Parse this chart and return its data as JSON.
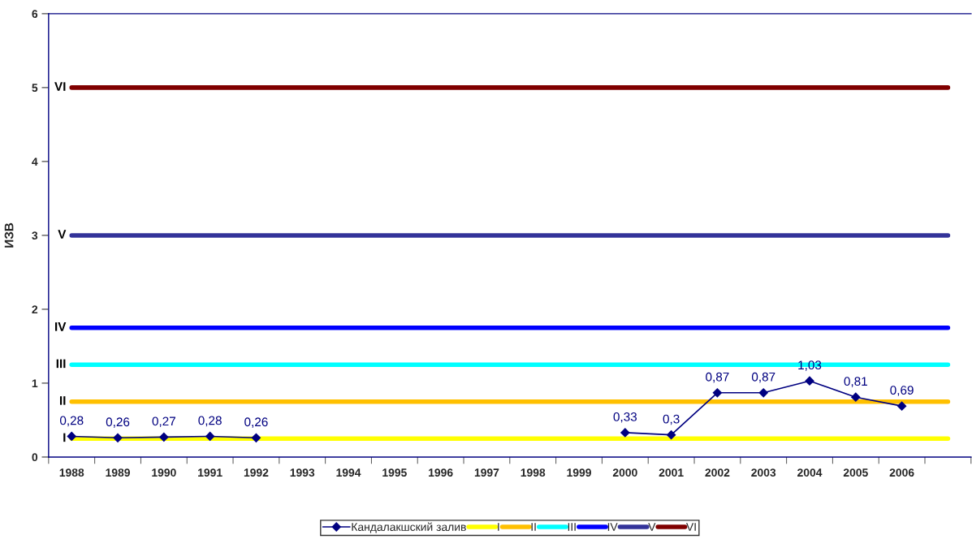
{
  "chart_data": {
    "type": "line",
    "ylabel": "ИЗВ",
    "categories": [
      "1988",
      "1989",
      "1990",
      "1991",
      "1992",
      "1993",
      "1994",
      "1995",
      "1996",
      "1997",
      "1998",
      "1999",
      "2000",
      "2001",
      "2002",
      "2003",
      "2004",
      "2005",
      "2006",
      null
    ],
    "series": [
      {
        "name": "Кандалакшский залив",
        "color": "#000080",
        "marker": "diamond",
        "values": [
          0.28,
          0.26,
          0.27,
          0.28,
          0.26,
          null,
          null,
          null,
          null,
          null,
          null,
          null,
          0.33,
          0.3,
          0.87,
          0.87,
          1.03,
          0.81,
          0.69,
          null
        ],
        "value_labels": [
          "0,28",
          "0,26",
          "0,27",
          "0,28",
          "0,26",
          null,
          null,
          null,
          null,
          null,
          null,
          null,
          "0,33",
          "0,3",
          "0,87",
          "0,87",
          "1,03",
          "0,81",
          "0,69",
          null
        ]
      },
      {
        "name": "I",
        "color": "#ffff00",
        "marker": "none",
        "values": [
          0.25,
          0.25,
          0.25,
          0.25,
          0.25,
          0.25,
          0.25,
          0.25,
          0.25,
          0.25,
          0.25,
          0.25,
          0.25,
          0.25,
          0.25,
          0.25,
          0.25,
          0.25,
          0.25,
          0.25
        ]
      },
      {
        "name": "II",
        "color": "#ffc000",
        "marker": "none",
        "values": [
          0.75,
          0.75,
          0.75,
          0.75,
          0.75,
          0.75,
          0.75,
          0.75,
          0.75,
          0.75,
          0.75,
          0.75,
          0.75,
          0.75,
          0.75,
          0.75,
          0.75,
          0.75,
          0.75,
          0.75
        ]
      },
      {
        "name": "III",
        "color": "#00ffff",
        "marker": "none",
        "values": [
          1.25,
          1.25,
          1.25,
          1.25,
          1.25,
          1.25,
          1.25,
          1.25,
          1.25,
          1.25,
          1.25,
          1.25,
          1.25,
          1.25,
          1.25,
          1.25,
          1.25,
          1.25,
          1.25,
          1.25
        ]
      },
      {
        "name": "IV",
        "color": "#0000ff",
        "marker": "none",
        "values": [
          1.75,
          1.75,
          1.75,
          1.75,
          1.75,
          1.75,
          1.75,
          1.75,
          1.75,
          1.75,
          1.75,
          1.75,
          1.75,
          1.75,
          1.75,
          1.75,
          1.75,
          1.75,
          1.75,
          1.75
        ]
      },
      {
        "name": "V",
        "color": "#333399",
        "marker": "none",
        "values": [
          3,
          3,
          3,
          3,
          3,
          3,
          3,
          3,
          3,
          3,
          3,
          3,
          3,
          3,
          3,
          3,
          3,
          3,
          3,
          3
        ]
      },
      {
        "name": "VI",
        "color": "#800000",
        "marker": "none",
        "values": [
          5,
          5,
          5,
          5,
          5,
          5,
          5,
          5,
          5,
          5,
          5,
          5,
          5,
          5,
          5,
          5,
          5,
          5,
          5,
          5
        ]
      }
    ],
    "ylim": [
      0,
      6
    ],
    "yticks": [
      0,
      1,
      2,
      3,
      4,
      5,
      6
    ],
    "grid": false,
    "legend": "bottom"
  }
}
